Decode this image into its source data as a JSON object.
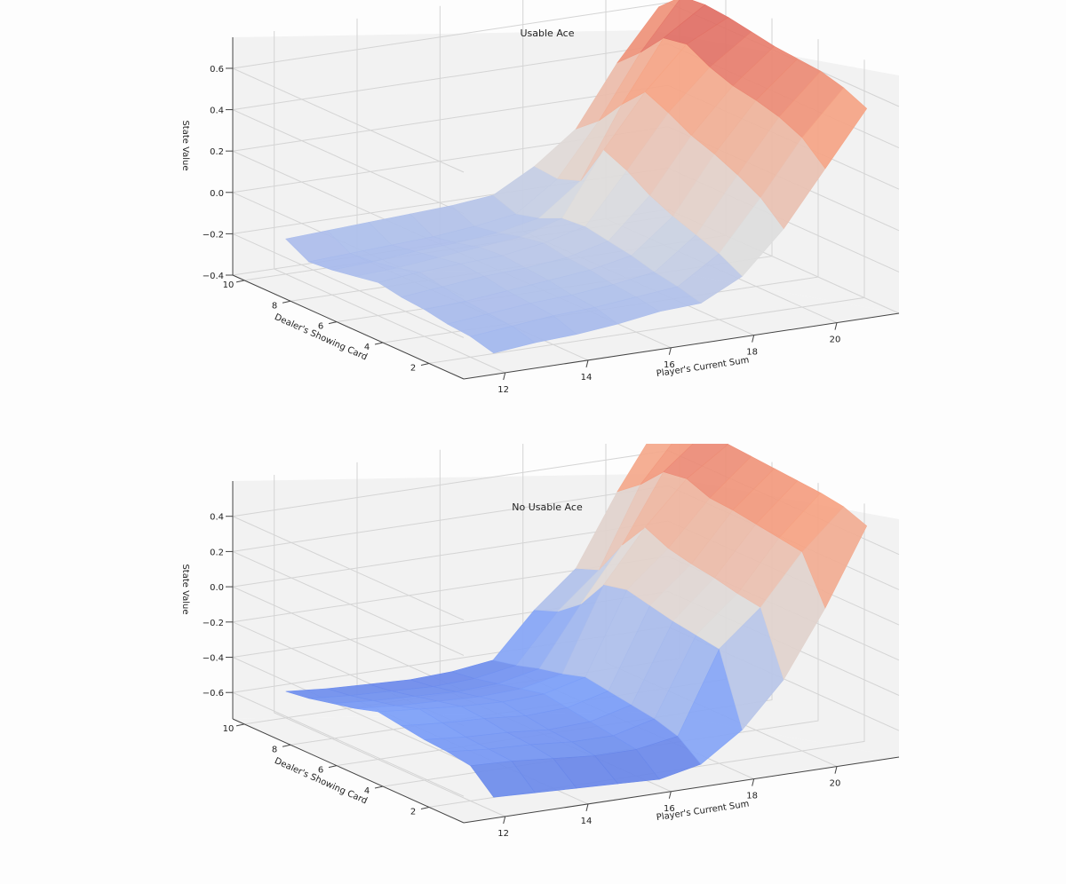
{
  "chart_data": [
    {
      "type": "surface",
      "title": "Usable Ace",
      "xlabel": "Player's Current Sum",
      "ylabel": "Dealer's Showing Card",
      "zlabel": "State Value",
      "x_ticks": [
        "12",
        "14",
        "16",
        "18",
        "20"
      ],
      "y_ticks": [
        "2",
        "4",
        "6",
        "8",
        "10"
      ],
      "z_ticks": [
        "−0.4",
        "−0.2",
        "0.0",
        "0.2",
        "0.4",
        "0.6"
      ],
      "zlim": [
        -0.4,
        0.75
      ],
      "colormap": "coolwarm",
      "player_sum": [
        12,
        13,
        14,
        15,
        16,
        17,
        18,
        19,
        20,
        21
      ],
      "dealer_card": [
        1,
        2,
        3,
        4,
        5,
        6,
        7,
        8,
        9,
        10
      ],
      "values": [
        [
          -0.33,
          -0.31,
          -0.3,
          -0.28,
          -0.25,
          -0.24,
          -0.14,
          0.06,
          0.32,
          0.58
        ],
        [
          -0.3,
          -0.28,
          -0.26,
          -0.25,
          -0.23,
          -0.21,
          -0.08,
          0.16,
          0.42,
          0.63
        ],
        [
          -0.29,
          -0.27,
          -0.25,
          -0.24,
          -0.22,
          -0.19,
          -0.04,
          0.22,
          0.47,
          0.66
        ],
        [
          -0.27,
          -0.26,
          -0.24,
          -0.22,
          -0.2,
          -0.16,
          0.0,
          0.27,
          0.5,
          0.67
        ],
        [
          -0.26,
          -0.24,
          -0.22,
          -0.21,
          -0.19,
          -0.14,
          0.05,
          0.31,
          0.52,
          0.68
        ],
        [
          -0.24,
          -0.22,
          -0.21,
          -0.2,
          -0.17,
          -0.12,
          0.12,
          0.37,
          0.56,
          0.7
        ],
        [
          -0.26,
          -0.25,
          -0.23,
          -0.21,
          -0.19,
          -0.13,
          0.17,
          0.42,
          0.62,
          0.72
        ],
        [
          -0.28,
          -0.27,
          -0.25,
          -0.24,
          -0.22,
          -0.18,
          -0.03,
          0.31,
          0.6,
          0.73
        ],
        [
          -0.29,
          -0.28,
          -0.27,
          -0.26,
          -0.24,
          -0.21,
          -0.07,
          0.18,
          0.48,
          0.72
        ],
        [
          -0.23,
          -0.22,
          -0.21,
          -0.2,
          -0.19,
          -0.17,
          -0.06,
          0.09,
          0.38,
          0.62
        ]
      ]
    },
    {
      "type": "surface",
      "title": "No Usable Ace",
      "xlabel": "Player's Current Sum",
      "ylabel": "Dealer's Showing Card",
      "zlabel": "State Value",
      "x_ticks": [
        "12",
        "14",
        "16",
        "18",
        "20"
      ],
      "y_ticks": [
        "2",
        "4",
        "6",
        "8",
        "10"
      ],
      "z_ticks": [
        "−0.6",
        "−0.4",
        "−0.2",
        "0.0",
        "0.2",
        "0.4"
      ],
      "zlim": [
        -0.75,
        0.6
      ],
      "colormap": "coolwarm",
      "player_sum": [
        12,
        13,
        14,
        15,
        16,
        17,
        18,
        19,
        20,
        21
      ],
      "dealer_card": [
        1,
        2,
        3,
        4,
        5,
        6,
        7,
        8,
        9,
        10
      ],
      "values": [
        [
          -0.67,
          -0.68,
          -0.69,
          -0.7,
          -0.71,
          -0.66,
          -0.5,
          -0.25,
          0.12,
          0.55
        ],
        [
          -0.55,
          -0.56,
          -0.58,
          -0.6,
          -0.6,
          -0.56,
          -0.1,
          0.1,
          0.38,
          0.6
        ],
        [
          -0.53,
          -0.55,
          -0.56,
          -0.58,
          -0.58,
          -0.52,
          -0.08,
          0.12,
          0.4,
          0.62
        ],
        [
          -0.52,
          -0.54,
          -0.55,
          -0.57,
          -0.56,
          -0.5,
          -0.06,
          0.15,
          0.42,
          0.63
        ],
        [
          -0.5,
          -0.52,
          -0.53,
          -0.55,
          -0.54,
          -0.48,
          -0.03,
          0.17,
          0.44,
          0.64
        ],
        [
          -0.48,
          -0.5,
          -0.52,
          -0.53,
          -0.52,
          -0.46,
          0.0,
          0.2,
          0.45,
          0.65
        ],
        [
          -0.52,
          -0.54,
          -0.55,
          -0.56,
          -0.55,
          -0.5,
          -0.03,
          0.26,
          0.5,
          0.66
        ],
        [
          -0.55,
          -0.57,
          -0.58,
          -0.59,
          -0.58,
          -0.53,
          -0.2,
          0.1,
          0.48,
          0.67
        ],
        [
          -0.58,
          -0.6,
          -0.61,
          -0.62,
          -0.61,
          -0.57,
          -0.3,
          -0.1,
          0.35,
          0.62
        ],
        [
          -0.6,
          -0.62,
          -0.63,
          -0.64,
          -0.63,
          -0.6,
          -0.35,
          -0.15,
          0.25,
          0.6
        ]
      ]
    }
  ]
}
